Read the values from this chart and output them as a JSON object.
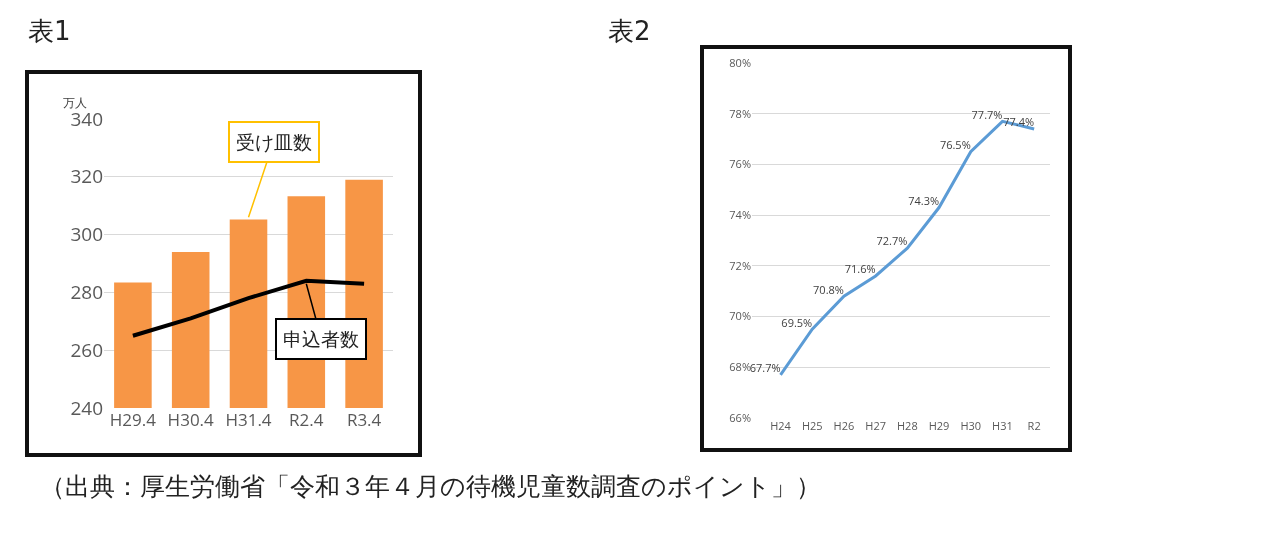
{
  "chart_data": [
    {
      "type": "bar",
      "title": "表1",
      "ylabel": "万人",
      "categories": [
        "H29.4",
        "H30.4",
        "H31.4",
        "R2.4",
        "R3.4"
      ],
      "series": [
        {
          "color": "#f79646",
          "values": [
            283.4,
            294,
            305.2,
            313.3,
            319
          ]
        },
        {
          "type": "line",
          "color": "#000000",
          "values": [
            265,
            271,
            278,
            284,
            283
          ]
        }
      ],
      "ylim": [
        240,
        340
      ],
      "yticks": [
        240,
        260,
        280,
        300,
        320,
        340
      ],
      "grid": "y",
      "legend": false,
      "annotations": [
        {
          "text": "受け皿数",
          "x": "H31.4",
          "y": 306
        },
        {
          "text": "申込者数",
          "x": "R2.4",
          "y": 283
        },
        "（出典：厚生労働省「令和３年４月の待機児童数調査のポイント」）"
      ]
    },
    {
      "type": "line",
      "title": "表2",
      "categories": [
        "H24",
        "H25",
        "H26",
        "H27",
        "H28",
        "H29",
        "H30",
        "H31",
        "R2"
      ],
      "series": [
        {
          "color": "#5b9bd5",
          "values": [
            67.7,
            69.5,
            70.8,
            71.6,
            72.7,
            74.3,
            76.5,
            77.7,
            77.4
          ],
          "value_labels": [
            "67.7%",
            "69.5%",
            "70.8%",
            "71.6%",
            "72.7%",
            "74.3%",
            "76.5%",
            "77.7%",
            "77.4%"
          ]
        }
      ],
      "ylim": [
        66,
        80
      ],
      "yticks": [
        {
          "value": 66,
          "label": "66%"
        },
        {
          "value": 68,
          "label": "68%"
        },
        {
          "value": 70,
          "label": "70%"
        },
        {
          "value": 72,
          "label": "72%"
        },
        {
          "value": 74,
          "label": "74%"
        },
        {
          "value": 76,
          "label": "76%"
        },
        {
          "value": 78,
          "label": "78%"
        },
        {
          "value": 80,
          "label": "80%"
        }
      ],
      "grid": "y",
      "legend": false
    }
  ]
}
